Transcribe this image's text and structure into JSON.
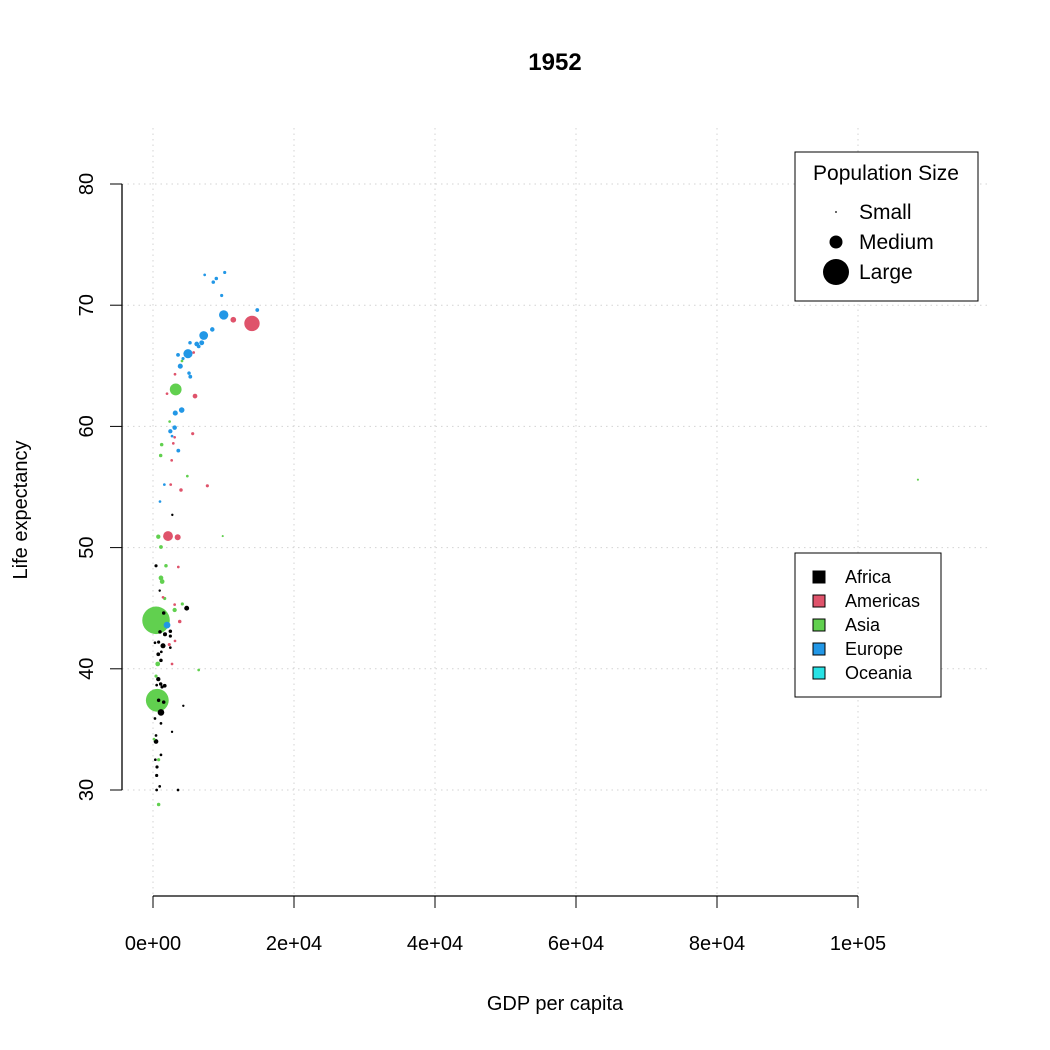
{
  "chart_data": {
    "type": "scatter",
    "title": "1952",
    "xlabel": "GDP per capita",
    "ylabel": "Life expectancy",
    "xlim": [
      0,
      100000
    ],
    "ylim": [
      30,
      80
    ],
    "xticks": [
      0,
      20000,
      40000,
      60000,
      80000,
      100000
    ],
    "xtick_labels": [
      "0e+00",
      "2e+04",
      "4e+04",
      "6e+04",
      "8e+04",
      "1e+05"
    ],
    "yticks": [
      30,
      40,
      50,
      60,
      70,
      80
    ],
    "ytick_labels": [
      "30",
      "40",
      "50",
      "60",
      "70",
      "80"
    ],
    "grid": true,
    "continents": [
      {
        "name": "Africa",
        "color": "#000000"
      },
      {
        "name": "Americas",
        "color": "#DF536B"
      },
      {
        "name": "Asia",
        "color": "#61D04F"
      },
      {
        "name": "Europe",
        "color": "#2297E6"
      },
      {
        "name": "Oceania",
        "color": "#28E2E5"
      }
    ],
    "size_legend": {
      "title": "Population Size",
      "items": [
        {
          "label": "Small",
          "pop_millions": 0.3
        },
        {
          "label": "Medium",
          "pop_millions": 40
        },
        {
          "label": "Large",
          "pop_millions": 500
        }
      ]
    },
    "color_legend_position": "right",
    "size_legend_position": "top-right",
    "point_fields": [
      "gdp_per_capita",
      "life_expectancy",
      "population_millions",
      "continent"
    ],
    "points": [
      [
        7330,
        72.5,
        1,
        "Europe"
      ],
      [
        10170,
        72.7,
        2,
        "Europe"
      ],
      [
        8980,
        72.2,
        3,
        "Europe"
      ],
      [
        8550,
        71.9,
        3,
        "Europe"
      ],
      [
        9740,
        70.8,
        2,
        "Europe"
      ],
      [
        10030,
        69.2,
        50,
        "Europe"
      ],
      [
        14790,
        69.6,
        4,
        "Europe"
      ],
      [
        11390,
        68.8,
        14,
        "Americas"
      ],
      [
        14040,
        68.5,
        157,
        "Americas"
      ],
      [
        8410,
        68.0,
        7,
        "Europe"
      ],
      [
        7190,
        67.5,
        42,
        "Europe"
      ],
      [
        5250,
        66.9,
        3,
        "Europe"
      ],
      [
        6200,
        66.8,
        8,
        "Europe"
      ],
      [
        6480,
        66.6,
        4,
        "Europe"
      ],
      [
        6910,
        66.9,
        9,
        "Europe"
      ],
      [
        5770,
        66.1,
        1,
        "Americas"
      ],
      [
        4960,
        66.0,
        47,
        "Europe"
      ],
      [
        3550,
        65.9,
        4,
        "Europe"
      ],
      [
        4110,
        65.4,
        1,
        "Asia"
      ],
      [
        4260,
        65.6,
        2,
        "Europe"
      ],
      [
        3870,
        64.97,
        10,
        "Europe"
      ],
      [
        3120,
        64.3,
        1,
        "Americas"
      ],
      [
        5110,
        64.4,
        3,
        "Europe"
      ],
      [
        5290,
        64.1,
        4,
        "Europe"
      ],
      [
        3220,
        63.05,
        86,
        "Asia"
      ],
      [
        1990,
        62.7,
        1,
        "Americas"
      ],
      [
        5960,
        62.5,
        8,
        "Americas"
      ],
      [
        4070,
        61.35,
        13,
        "Europe"
      ],
      [
        3160,
        61.1,
        10,
        "Europe"
      ],
      [
        2360,
        60.4,
        1,
        "Asia"
      ],
      [
        5630,
        59.4,
        2,
        "Americas"
      ],
      [
        3070,
        59.9,
        7,
        "Europe"
      ],
      [
        2460,
        59.6,
        6,
        "Europe"
      ],
      [
        2700,
        59.2,
        1,
        "Europe"
      ],
      [
        3070,
        59.1,
        1,
        "Americas"
      ],
      [
        2880,
        58.6,
        1,
        "Americas"
      ],
      [
        1230,
        58.5,
        3,
        "Asia"
      ],
      [
        1090,
        57.6,
        3,
        "Asia"
      ],
      [
        3590,
        58.0,
        4,
        "Europe"
      ],
      [
        2650,
        57.2,
        1,
        "Americas"
      ],
      [
        4870,
        55.9,
        1,
        "Asia"
      ],
      [
        1610,
        55.2,
        1,
        "Europe"
      ],
      [
        2510,
        55.2,
        1,
        "Americas"
      ],
      [
        3970,
        54.75,
        3,
        "Americas"
      ],
      [
        7710,
        55.1,
        2,
        "Americas"
      ],
      [
        990,
        53.8,
        1,
        "Europe"
      ],
      [
        2740,
        52.7,
        0.5,
        "Africa"
      ],
      [
        750,
        50.9,
        6,
        "Asia"
      ],
      [
        2130,
        50.95,
        56,
        "Americas"
      ],
      [
        3500,
        50.85,
        16,
        "Americas"
      ],
      [
        9890,
        50.95,
        0.2,
        "Asia"
      ],
      [
        1130,
        50.05,
        4,
        "Asia"
      ],
      [
        430,
        48.5,
        2,
        "Africa"
      ],
      [
        1840,
        48.5,
        3,
        "Asia"
      ],
      [
        3590,
        48.4,
        1,
        "Americas"
      ],
      [
        1130,
        47.5,
        8,
        "Asia"
      ],
      [
        1300,
        47.2,
        8,
        "Asia"
      ],
      [
        950,
        46.45,
        0.5,
        "Africa"
      ],
      [
        1420,
        45.9,
        1,
        "Americas"
      ],
      [
        1660,
        45.8,
        2,
        "Asia"
      ],
      [
        3070,
        45.3,
        1,
        "Americas"
      ],
      [
        4160,
        45.35,
        2,
        "Asia"
      ],
      [
        3070,
        44.85,
        6,
        "Asia"
      ],
      [
        4780,
        45.0,
        9,
        "Africa"
      ],
      [
        430,
        44.0,
        556,
        "Asia"
      ],
      [
        1520,
        44.6,
        3,
        "Africa"
      ],
      [
        3790,
        43.9,
        3,
        "Americas"
      ],
      [
        1990,
        43.6,
        22,
        "Europe"
      ],
      [
        2460,
        43.1,
        3,
        "Africa"
      ],
      [
        1700,
        42.85,
        5,
        "Africa"
      ],
      [
        2460,
        42.7,
        2,
        "Africa"
      ],
      [
        990,
        43.05,
        3,
        "Africa"
      ],
      [
        3120,
        42.3,
        1,
        "Americas"
      ],
      [
        800,
        42.2,
        2,
        "Africa"
      ],
      [
        1420,
        41.9,
        10,
        "Africa"
      ],
      [
        2310,
        42.0,
        2,
        "Americas"
      ],
      [
        2460,
        41.75,
        1,
        "Africa"
      ],
      [
        280,
        42.15,
        1,
        "Africa"
      ],
      [
        750,
        41.2,
        4,
        "Africa"
      ],
      [
        1180,
        41.4,
        1,
        "Africa"
      ],
      [
        1130,
        40.7,
        3,
        "Africa"
      ],
      [
        2700,
        40.4,
        1,
        "Americas"
      ],
      [
        670,
        40.4,
        8,
        "Asia"
      ],
      [
        6480,
        39.9,
        1,
        "Asia"
      ],
      [
        430,
        39.4,
        2,
        "Asia"
      ],
      [
        750,
        39.15,
        6,
        "Africa"
      ],
      [
        1090,
        38.75,
        3,
        "Africa"
      ],
      [
        1660,
        38.6,
        4,
        "Africa"
      ],
      [
        1280,
        38.5,
        2,
        "Africa"
      ],
      [
        520,
        38.65,
        1,
        "Africa"
      ],
      [
        610,
        37.4,
        372,
        "Asia"
      ],
      [
        800,
        37.4,
        3,
        "Africa"
      ],
      [
        1520,
        37.25,
        3,
        "Africa"
      ],
      [
        1130,
        36.4,
        21,
        "Africa"
      ],
      [
        4300,
        36.95,
        0.5,
        "Africa"
      ],
      [
        280,
        35.9,
        1,
        "Africa"
      ],
      [
        1130,
        35.5,
        1,
        "Africa"
      ],
      [
        2700,
        34.8,
        0.5,
        "Africa"
      ],
      [
        430,
        34.5,
        1,
        "Africa"
      ],
      [
        430,
        34.0,
        8,
        "Africa"
      ],
      [
        140,
        34.2,
        1,
        "Asia"
      ],
      [
        1130,
        32.9,
        1,
        "Africa"
      ],
      [
        800,
        32.5,
        2,
        "Asia"
      ],
      [
        330,
        32.5,
        1,
        "Africa"
      ],
      [
        570,
        31.9,
        2,
        "Africa"
      ],
      [
        520,
        31.2,
        2,
        "Africa"
      ],
      [
        950,
        30.3,
        1,
        "Africa"
      ],
      [
        520,
        30.0,
        1,
        "Africa"
      ],
      [
        3550,
        30.0,
        1,
        "Africa"
      ],
      [
        800,
        28.8,
        3,
        "Asia"
      ],
      [
        108500,
        55.6,
        0.2,
        "Asia"
      ]
    ]
  }
}
